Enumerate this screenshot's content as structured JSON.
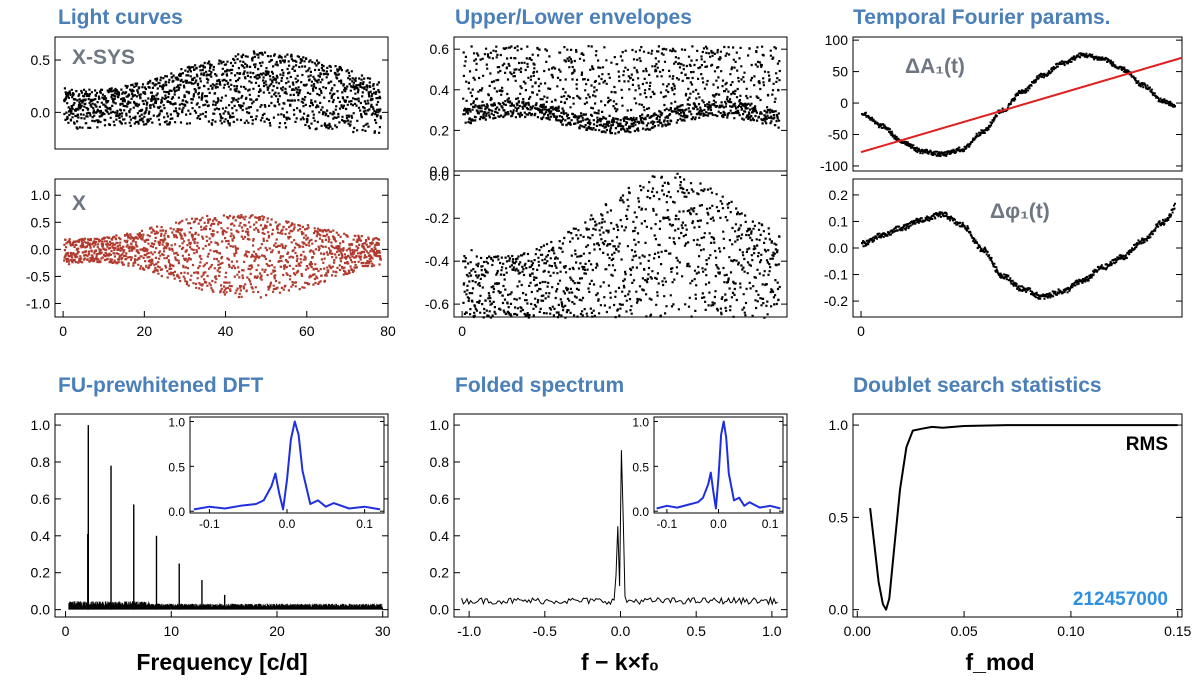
{
  "chart_data": [
    {
      "id": "lc_top",
      "type": "scatter",
      "title": "Light curves",
      "annotation": "X-SYS",
      "color": "#000000",
      "xlim": [
        -2,
        80
      ],
      "ylim": [
        -0.35,
        0.72
      ],
      "yticks": [
        0.0,
        0.5
      ],
      "yticklabels": [
        "0.0",
        "0.5"
      ],
      "series_description": "Raw light curve points, spread between about -0.2 and 0.75 with slow envelope variation"
    },
    {
      "id": "lc_bottom",
      "type": "scatter",
      "title": "",
      "annotation": "X",
      "color": "#b03a2e",
      "xlim": [
        -2,
        80
      ],
      "ylim": [
        -1.25,
        1.3
      ],
      "xticks": [
        0,
        20,
        40,
        60,
        80
      ],
      "xticklabels": [
        "0",
        "20",
        "40",
        "60",
        "80"
      ],
      "yticks": [
        -1.0,
        -0.5,
        0.0,
        0.5,
        1.0
      ],
      "yticklabels": [
        "-1.0",
        "-0.5",
        "0.0",
        "0.5",
        "1.0"
      ],
      "series_description": "Detrended light curve, range about -1.0 to 1.0"
    },
    {
      "id": "env_top",
      "type": "scatter",
      "title": "Upper/Lower envelopes",
      "color": "#000000",
      "xlim": [
        -2,
        80
      ],
      "ylim": [
        0.0,
        0.66
      ],
      "yticks": [
        0.0,
        0.2,
        0.4,
        0.6
      ],
      "yticklabels": [
        "0.0",
        "0.2",
        "0.4",
        "0.6"
      ],
      "series_description": "Upper envelope points between about 0.15 and 0.65, dense band near 0.27"
    },
    {
      "id": "env_bottom",
      "type": "scatter",
      "title": "",
      "color": "#000000",
      "xlim": [
        -2,
        80
      ],
      "ylim": [
        -0.66,
        0.02
      ],
      "xticks": [
        0
      ],
      "xticklabels": [
        "0"
      ],
      "yticks": [
        -0.6,
        -0.4,
        -0.2,
        0.0
      ],
      "yticklabels": [
        "-0.6",
        "-0.4",
        "-0.2",
        "0.0"
      ],
      "series_description": "Lower envelope points between about -0.65 and 0.0, upper edge peaks near x=60"
    },
    {
      "id": "four_top",
      "type": "line",
      "title": "Temporal Fourier params.",
      "annotation": "ΔA₁(t)",
      "xlim": [
        -2,
        80
      ],
      "ylim": [
        -108,
        105
      ],
      "yticks": [
        -100,
        -50,
        0,
        50,
        100
      ],
      "yticklabels": [
        "-100",
        "-50",
        "0",
        "50",
        "100"
      ],
      "series": [
        {
          "name": "ΔA1(t)",
          "color": "#000000",
          "x": [
            0,
            5,
            10,
            15,
            20,
            25,
            30,
            35,
            40,
            45,
            50,
            55,
            60,
            65,
            70,
            75,
            80
          ],
          "y": [
            -15,
            -35,
            -60,
            -75,
            -80,
            -72,
            -45,
            -10,
            20,
            45,
            65,
            78,
            72,
            55,
            30,
            5,
            -10
          ]
        },
        {
          "name": "linear trend",
          "color": "#e02020",
          "x": [
            0,
            80
          ],
          "y": [
            -78,
            72
          ]
        }
      ]
    },
    {
      "id": "four_bottom",
      "type": "line",
      "title": "",
      "annotation": "Δφ₁(t)",
      "color": "#000000",
      "xlim": [
        -2,
        80
      ],
      "ylim": [
        -0.26,
        0.26
      ],
      "xticks": [
        0
      ],
      "xticklabels": [
        "0"
      ],
      "yticks": [
        -0.2,
        -0.1,
        0.0,
        0.1,
        0.2
      ],
      "yticklabels": [
        "-0.2",
        "-0.1",
        "0.0",
        "0.1",
        "0.2"
      ],
      "x": [
        0,
        5,
        10,
        15,
        20,
        25,
        30,
        35,
        40,
        45,
        50,
        55,
        60,
        65,
        70,
        75,
        80
      ],
      "y": [
        0.02,
        0.05,
        0.08,
        0.11,
        0.13,
        0.09,
        0.0,
        -0.1,
        -0.15,
        -0.18,
        -0.16,
        -0.12,
        -0.07,
        -0.03,
        0.03,
        0.1,
        0.2
      ]
    },
    {
      "id": "dft",
      "type": "line",
      "title": "FU-prewhitened DFT",
      "xlabel": "Frequency [c/d]",
      "color": "#000000",
      "xlim": [
        -1,
        30.5
      ],
      "ylim": [
        -0.04,
        1.06
      ],
      "xticks": [
        0,
        10,
        20,
        30
      ],
      "xticklabels": [
        "0",
        "10",
        "20",
        "30"
      ],
      "yticks": [
        0.0,
        0.2,
        0.4,
        0.6,
        0.8,
        1.0
      ],
      "yticklabels": [
        "0.0",
        "0.2",
        "0.4",
        "0.6",
        "0.8",
        "1.0"
      ],
      "noise_level": 0.025,
      "peaks": [
        {
          "x": 2.1,
          "y": 0.41
        },
        {
          "x": 2.15,
          "y": 1.0
        },
        {
          "x": 4.3,
          "y": 0.78
        },
        {
          "x": 6.45,
          "y": 0.57
        },
        {
          "x": 8.6,
          "y": 0.4
        },
        {
          "x": 10.75,
          "y": 0.25
        },
        {
          "x": 12.9,
          "y": 0.16
        },
        {
          "x": 15.05,
          "y": 0.08
        }
      ]
    },
    {
      "id": "dft_inset",
      "type": "line",
      "color": "#1f2fe0",
      "xlim": [
        -0.125,
        0.125
      ],
      "ylim": [
        -0.02,
        1.05
      ],
      "xticks": [
        -0.1,
        0.0,
        0.1
      ],
      "xticklabels": [
        "-0.1",
        "0.0",
        "0.1"
      ],
      "yticks": [
        0.0,
        0.5,
        1.0
      ],
      "yticklabels": [
        "0.0",
        "0.5",
        "1.0"
      ],
      "x": [
        -0.12,
        -0.1,
        -0.08,
        -0.06,
        -0.04,
        -0.03,
        -0.02,
        -0.015,
        -0.01,
        -0.005,
        0.0,
        0.005,
        0.01,
        0.015,
        0.02,
        0.03,
        0.04,
        0.05,
        0.06,
        0.08,
        0.1,
        0.12
      ],
      "y": [
        0.02,
        0.05,
        0.03,
        0.06,
        0.08,
        0.12,
        0.28,
        0.42,
        0.2,
        0.02,
        0.35,
        0.8,
        1.0,
        0.85,
        0.45,
        0.08,
        0.12,
        0.05,
        0.09,
        0.03,
        0.05,
        0.02
      ]
    },
    {
      "id": "fold",
      "type": "line",
      "title": "Folded spectrum",
      "xlabel": "f − k×f₀",
      "color": "#000000",
      "xlim": [
        -1.1,
        1.1
      ],
      "ylim": [
        -0.04,
        1.06
      ],
      "xticks": [
        -1.0,
        -0.5,
        0.0,
        0.5,
        1.0
      ],
      "xticklabels": [
        "-1.0",
        "-0.5",
        "0.0",
        "0.5",
        "1.0"
      ],
      "yticks": [
        0.0,
        0.2,
        0.4,
        0.6,
        0.8,
        1.0
      ],
      "yticklabels": [
        "0.0",
        "0.2",
        "0.4",
        "0.6",
        "0.8",
        "1.0"
      ],
      "noise_level": 0.05,
      "peaks": [
        {
          "x": -0.02,
          "y": 0.43
        },
        {
          "x": 0.01,
          "y": 1.0
        }
      ]
    },
    {
      "id": "fold_inset",
      "type": "line",
      "color": "#1f2fe0",
      "xlim": [
        -0.125,
        0.125
      ],
      "ylim": [
        -0.02,
        1.05
      ],
      "xticks": [
        -0.1,
        0.0,
        0.1
      ],
      "xticklabels": [
        "-0.1",
        "0.0",
        "0.1"
      ],
      "yticks": [
        0.0,
        0.5,
        1.0
      ],
      "yticklabels": [
        "0.0",
        "0.5",
        "1.0"
      ],
      "x": [
        -0.12,
        -0.1,
        -0.08,
        -0.06,
        -0.04,
        -0.03,
        -0.02,
        -0.015,
        -0.01,
        -0.005,
        0.0,
        0.005,
        0.01,
        0.015,
        0.02,
        0.03,
        0.04,
        0.05,
        0.06,
        0.08,
        0.1,
        0.12
      ],
      "y": [
        0.03,
        0.06,
        0.04,
        0.07,
        0.1,
        0.15,
        0.3,
        0.43,
        0.22,
        0.03,
        0.38,
        0.85,
        1.0,
        0.82,
        0.42,
        0.12,
        0.15,
        0.06,
        0.1,
        0.04,
        0.06,
        0.03
      ]
    },
    {
      "id": "doublet",
      "type": "line",
      "title": "Doublet search statistics",
      "xlabel": "f_mod",
      "legend": "RMS",
      "epic_label": "212457000",
      "color": "#000000",
      "xlim": [
        -0.002,
        0.152
      ],
      "ylim": [
        -0.04,
        1.06
      ],
      "xticks": [
        0.0,
        0.05,
        0.1,
        0.15
      ],
      "xticklabels": [
        "0.00",
        "0.05",
        "0.10",
        "0.15"
      ],
      "yticks": [
        0.0,
        0.5,
        1.0
      ],
      "yticklabels": [
        "0.0",
        "0.5",
        "1.0"
      ],
      "x": [
        0.006,
        0.008,
        0.01,
        0.012,
        0.0135,
        0.015,
        0.017,
        0.02,
        0.023,
        0.026,
        0.03,
        0.035,
        0.04,
        0.05,
        0.07,
        0.1,
        0.13,
        0.15
      ],
      "y": [
        0.55,
        0.35,
        0.15,
        0.03,
        0.0,
        0.06,
        0.3,
        0.65,
        0.88,
        0.97,
        0.98,
        0.99,
        0.985,
        0.995,
        1.0,
        1.0,
        1.0,
        1.0
      ]
    }
  ]
}
